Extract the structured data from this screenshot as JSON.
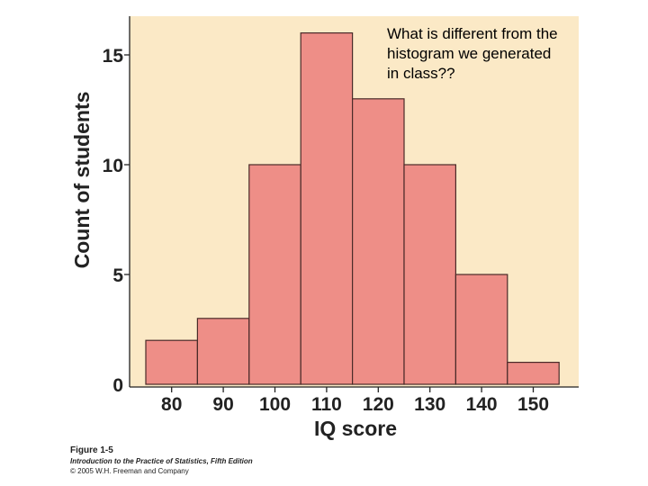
{
  "question_text": "What is different from the\nhistogram we generated\nin class??",
  "caption": {
    "figure": "Figure 1-5",
    "book": "Introduction to the Practice of Statistics, Fifth Edition",
    "copyright": "© 2005 W.H. Freeman and Company"
  },
  "colors": {
    "plot_background": "#fbe9c6",
    "bar_fill": "#ee8e87",
    "bar_stroke": "#4a2a28",
    "axis": "#222222",
    "text": "#222222"
  },
  "chart_data": {
    "type": "bar",
    "title": "",
    "xlabel": "IQ score",
    "ylabel": "Count of students",
    "categories": [
      "80",
      "90",
      "100",
      "110",
      "120",
      "130",
      "140",
      "150"
    ],
    "values": [
      2,
      3,
      10,
      16,
      13,
      10,
      5,
      1
    ],
    "yticks": [
      0,
      5,
      10,
      15
    ],
    "ylim": [
      0,
      17
    ],
    "grid": false,
    "legend": "none"
  }
}
